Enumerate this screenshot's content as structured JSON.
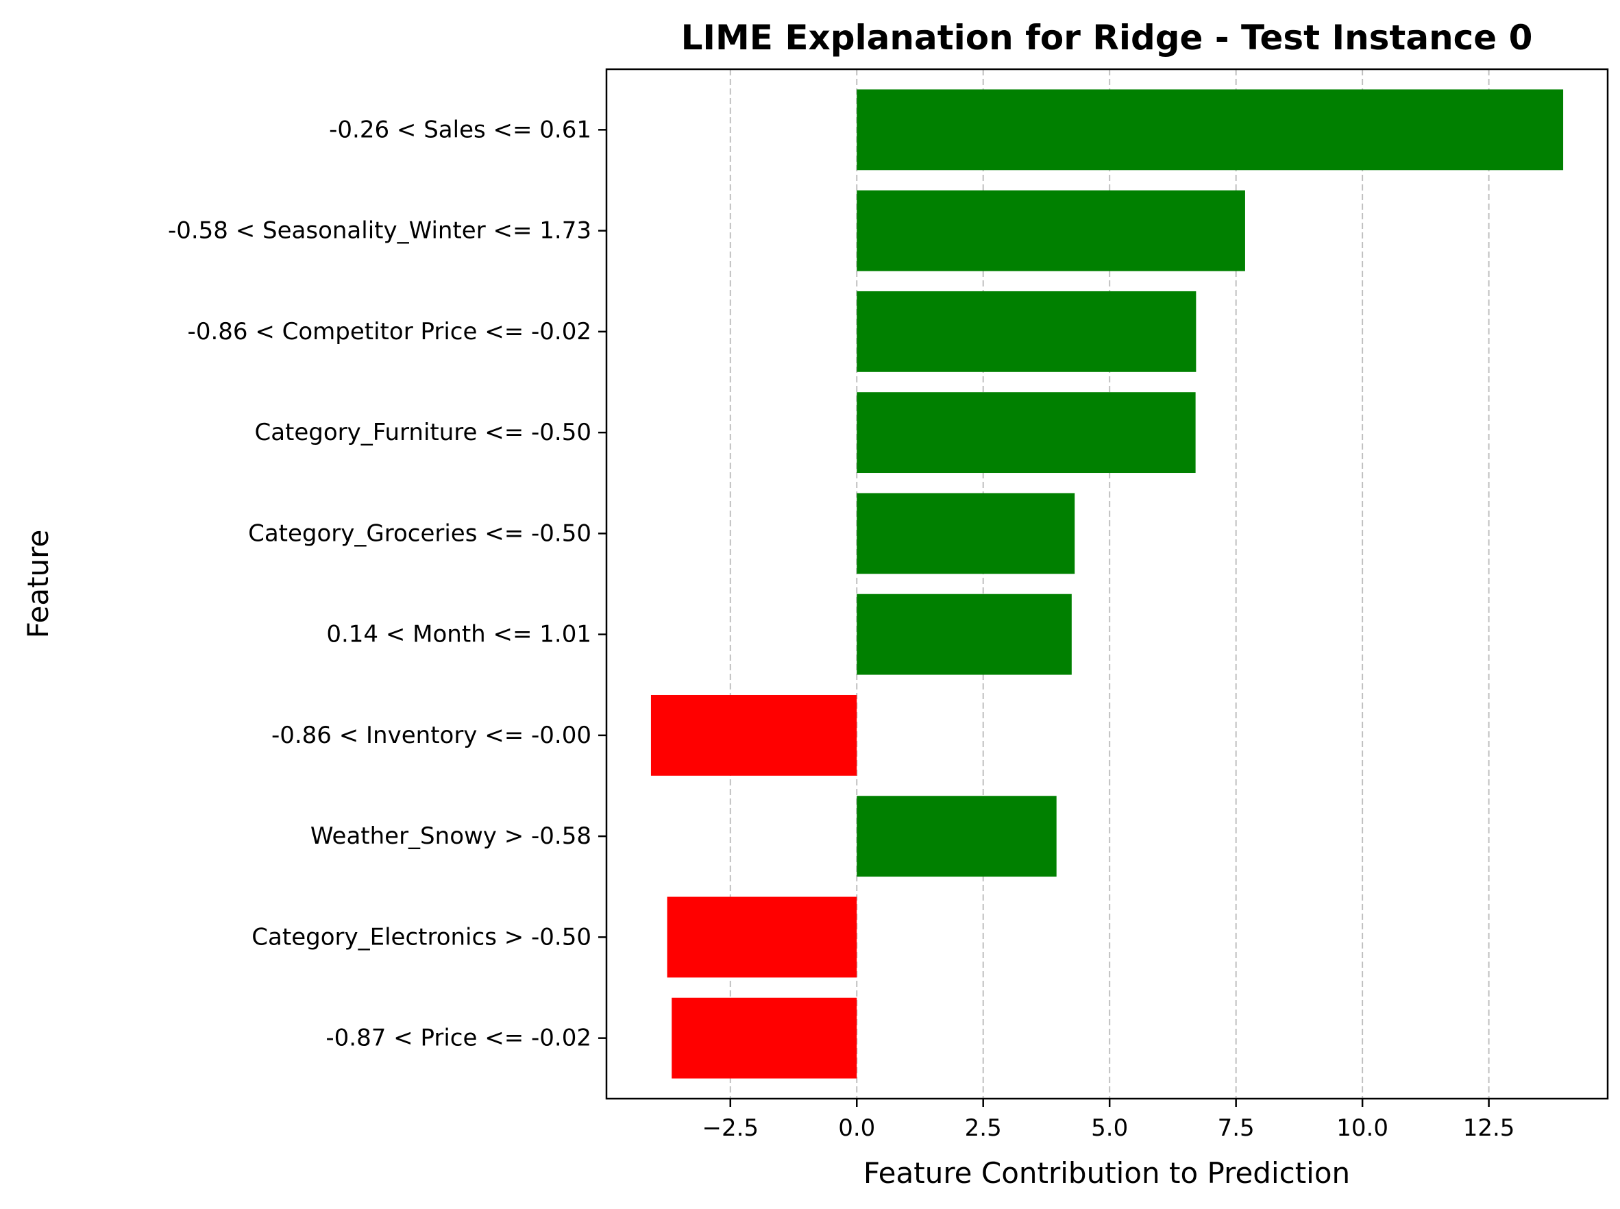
{
  "chart_data": {
    "type": "bar",
    "orientation": "horizontal",
    "title": "LIME Explanation for Ridge - Test Instance 0",
    "xlabel": "Feature Contribution to Prediction",
    "ylabel": "Feature",
    "xlim": [
      -4.95,
      14.85
    ],
    "xticks": [
      -2.5,
      0.0,
      2.5,
      5.0,
      7.5,
      10.0,
      12.5
    ],
    "xtick_labels": [
      "−2.5",
      "0.0",
      "2.5",
      "5.0",
      "7.5",
      "10.0",
      "12.5"
    ],
    "grid": {
      "axis": "x",
      "style": "dashed",
      "visible": true
    },
    "positive_color": "#008000",
    "negative_color": "#ff0000",
    "categories": [
      "-0.26 < Sales <= 0.61",
      "-0.58 < Seasonality_Winter <= 1.73",
      "-0.86 < Competitor Price <= -0.02",
      "Category_Furniture <= -0.50",
      "Category_Groceries <= -0.50",
      "0.14 < Month <= 1.01",
      "-0.86 < Inventory <= -0.00",
      "Weather_Snowy > -0.58",
      "Category_Electronics > -0.50",
      "-0.87 < Price <= -0.02"
    ],
    "values": [
      13.97,
      7.68,
      6.71,
      6.7,
      4.31,
      4.25,
      -4.07,
      3.95,
      -3.75,
      -3.66
    ]
  }
}
